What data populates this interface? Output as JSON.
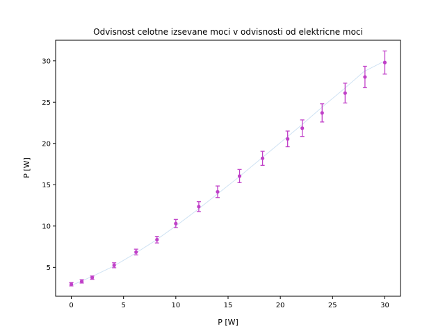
{
  "chart_data": {
    "type": "scatter",
    "title": "Odvisnost celotne izsevane moci v odvisnosti od elektricne moci",
    "xlabel": "P [W]",
    "ylabel": "P [W]",
    "xlim": [
      -1.5,
      31.5
    ],
    "ylim": [
      1.5,
      32.5
    ],
    "xticks": [
      0,
      5,
      10,
      15,
      20,
      25,
      30
    ],
    "yticks": [
      5,
      10,
      15,
      20,
      25,
      30
    ],
    "grid": false,
    "series": [
      {
        "kind": "errorbar",
        "color": "#c040c8",
        "x": [
          0,
          1,
          2,
          4.1,
          6.2,
          8.2,
          10,
          12.2,
          14,
          16.1,
          18.3,
          20.7,
          22.1,
          24,
          26.2,
          28.1,
          30
        ],
        "y": [
          2.95,
          3.3,
          3.75,
          5.25,
          6.85,
          8.35,
          10.3,
          12.35,
          14.15,
          16.05,
          18.2,
          20.55,
          21.85,
          23.7,
          26.1,
          28.05,
          29.8
        ],
        "yerr": [
          0.2,
          0.2,
          0.2,
          0.3,
          0.35,
          0.4,
          0.5,
          0.6,
          0.7,
          0.8,
          0.85,
          0.95,
          1.0,
          1.1,
          1.2,
          1.3,
          1.4
        ]
      },
      {
        "kind": "fit-line",
        "color": "#cfe2f3",
        "x": [
          0,
          2,
          4,
          6,
          8,
          10,
          12,
          14,
          16,
          18,
          20,
          22,
          24,
          26,
          28,
          30
        ],
        "y": [
          2.8,
          3.9,
          5.1,
          6.6,
          8.2,
          10.0,
          11.9,
          13.9,
          15.9,
          18.0,
          20.1,
          22.2,
          24.4,
          26.5,
          28.7,
          30.0
        ]
      }
    ]
  }
}
